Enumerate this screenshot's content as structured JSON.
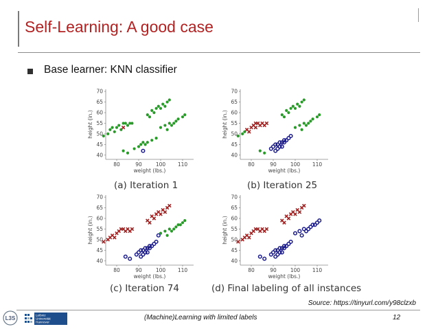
{
  "slide": {
    "title": "Self-Learning: A good case",
    "bullet": "Base learner: KNN classifier",
    "source": "Source: https://tinyurl.com/y98clzxb",
    "footer": "(Machine)Learning with limited labels",
    "page_number": "12"
  },
  "logos": {
    "l3s_text": "L3S",
    "luh_lines": [
      "Leibniz",
      "Universität",
      "Hannover"
    ]
  },
  "colors": {
    "red": "#a02020",
    "green": "#2a9a2a",
    "blue": "#1a1a8a",
    "title": "#b22222"
  },
  "chart_data": [
    {
      "type": "scatter",
      "caption": "(a) Iteration 1",
      "xlabel": "weight (lbs.)",
      "ylabel": "height (in.)",
      "xticks": [
        "80",
        "90",
        "100",
        "110"
      ],
      "yticks": [
        "40",
        "45",
        "50",
        "55",
        "60",
        "65",
        "70"
      ],
      "xlim": [
        75,
        115
      ],
      "ylim": [
        38,
        71
      ],
      "series": [
        {
          "marker": "dot",
          "color": "green",
          "points": [
            [
              74,
              49
            ],
            [
              76,
              50
            ],
            [
              77,
              52
            ],
            [
              78,
              53
            ],
            [
              80,
              53
            ],
            [
              81,
              54
            ],
            [
              83,
              55
            ],
            [
              84,
              55
            ],
            [
              85,
              54
            ],
            [
              86,
              55
            ],
            [
              87,
              55
            ],
            [
              79,
              51
            ],
            [
              82,
              52
            ],
            [
              94,
              59
            ],
            [
              96,
              61
            ],
            [
              97,
              60
            ],
            [
              99,
              63
            ],
            [
              100,
              62
            ],
            [
              101,
              64
            ],
            [
              103,
              65
            ],
            [
              104,
              66
            ],
            [
              102,
              63
            ],
            [
              98,
              62
            ],
            [
              95,
              58
            ],
            [
              100,
              53
            ],
            [
              102,
              54
            ],
            [
              104,
              55
            ],
            [
              106,
              55
            ],
            [
              107,
              56
            ],
            [
              108,
              57
            ],
            [
              110,
              58
            ],
            [
              111,
              59
            ],
            [
              103,
              52
            ],
            [
              105,
              54
            ],
            [
              83,
              42
            ],
            [
              85,
              41
            ],
            [
              88,
              43
            ],
            [
              90,
              44
            ],
            [
              91,
              45
            ],
            [
              92,
              46
            ],
            [
              94,
              46
            ],
            [
              96,
              47
            ],
            [
              98,
              48
            ],
            [
              93,
              45
            ]
          ]
        },
        {
          "marker": "x",
          "color": "red",
          "points": [
            [
              83,
              53
            ]
          ]
        },
        {
          "marker": "circle",
          "color": "blue",
          "points": [
            [
              92,
              42
            ]
          ]
        }
      ]
    },
    {
      "type": "scatter",
      "caption": "(b) Iteration 25",
      "xlabel": "weight (lbs.)",
      "ylabel": "height (in.)",
      "xticks": [
        "80",
        "90",
        "100",
        "110"
      ],
      "yticks": [
        "40",
        "45",
        "50",
        "55",
        "60",
        "65",
        "70"
      ],
      "xlim": [
        75,
        115
      ],
      "ylim": [
        38,
        71
      ],
      "series": [
        {
          "marker": "dot",
          "color": "green",
          "points": [
            [
              74,
              49
            ],
            [
              76,
              50
            ],
            [
              77,
              51
            ],
            [
              94,
              59
            ],
            [
              96,
              61
            ],
            [
              97,
              60
            ],
            [
              99,
              63
            ],
            [
              100,
              62
            ],
            [
              101,
              64
            ],
            [
              103,
              65
            ],
            [
              104,
              66
            ],
            [
              102,
              63
            ],
            [
              98,
              62
            ],
            [
              95,
              58
            ],
            [
              100,
              53
            ],
            [
              102,
              54
            ],
            [
              104,
              55
            ],
            [
              106,
              55
            ],
            [
              107,
              56
            ],
            [
              108,
              57
            ],
            [
              110,
              58
            ],
            [
              111,
              59
            ],
            [
              103,
              52
            ],
            [
              105,
              54
            ],
            [
              84,
              42
            ],
            [
              86,
              41
            ]
          ]
        },
        {
          "marker": "x",
          "color": "red",
          "points": [
            [
              78,
              52
            ],
            [
              80,
              53
            ],
            [
              81,
              54
            ],
            [
              82,
              55
            ],
            [
              83,
              55
            ],
            [
              84,
              54
            ],
            [
              85,
              55
            ],
            [
              86,
              54
            ],
            [
              87,
              55
            ],
            [
              79,
              51
            ],
            [
              82,
              53
            ]
          ]
        },
        {
          "marker": "circle",
          "color": "blue",
          "points": [
            [
              89,
              43
            ],
            [
              90,
              44
            ],
            [
              91,
              45
            ],
            [
              92,
              45
            ],
            [
              93,
              46
            ],
            [
              94,
              46
            ],
            [
              95,
              47
            ],
            [
              96,
              47
            ],
            [
              97,
              48
            ],
            [
              98,
              49
            ],
            [
              91,
              42
            ],
            [
              92,
              43
            ],
            [
              94,
              44
            ],
            [
              93,
              44
            ],
            [
              95,
              46
            ]
          ]
        }
      ]
    },
    {
      "type": "scatter",
      "caption": "(c) Iteration 74",
      "xlabel": "weight (lbs.)",
      "ylabel": "height (in.)",
      "xticks": [
        "80",
        "90",
        "100",
        "110"
      ],
      "yticks": [
        "40",
        "45",
        "50",
        "55",
        "60",
        "65",
        "70"
      ],
      "xlim": [
        75,
        115
      ],
      "ylim": [
        38,
        71
      ],
      "series": [
        {
          "marker": "dot",
          "color": "green",
          "points": [
            [
              100,
              53
            ],
            [
              102,
              54
            ],
            [
              104,
              55
            ],
            [
              106,
              55
            ],
            [
              107,
              56
            ],
            [
              108,
              57
            ],
            [
              110,
              58
            ],
            [
              111,
              59
            ],
            [
              103,
              52
            ],
            [
              105,
              54
            ],
            [
              109,
              57
            ]
          ]
        },
        {
          "marker": "x",
          "color": "red",
          "points": [
            [
              74,
              49
            ],
            [
              76,
              50
            ],
            [
              77,
              51
            ],
            [
              78,
              52
            ],
            [
              80,
              53
            ],
            [
              81,
              54
            ],
            [
              82,
              55
            ],
            [
              83,
              55
            ],
            [
              84,
              54
            ],
            [
              85,
              55
            ],
            [
              86,
              54
            ],
            [
              87,
              55
            ],
            [
              79,
              51
            ],
            [
              94,
              59
            ],
            [
              96,
              61
            ],
            [
              97,
              60
            ],
            [
              99,
              63
            ],
            [
              100,
              62
            ],
            [
              101,
              64
            ],
            [
              103,
              65
            ],
            [
              104,
              66
            ],
            [
              102,
              63
            ],
            [
              98,
              62
            ],
            [
              95,
              58
            ]
          ]
        },
        {
          "marker": "circle",
          "color": "blue",
          "points": [
            [
              84,
              42
            ],
            [
              86,
              41
            ],
            [
              89,
              43
            ],
            [
              90,
              44
            ],
            [
              91,
              45
            ],
            [
              92,
              45
            ],
            [
              93,
              46
            ],
            [
              94,
              46
            ],
            [
              95,
              47
            ],
            [
              96,
              47
            ],
            [
              97,
              48
            ],
            [
              98,
              49
            ],
            [
              91,
              42
            ],
            [
              92,
              43
            ],
            [
              94,
              44
            ],
            [
              93,
              44
            ],
            [
              95,
              46
            ],
            [
              99,
              52
            ]
          ]
        }
      ]
    },
    {
      "type": "scatter",
      "caption": "(d) Final labeling of all instances",
      "xlabel": "weight (lbs.)",
      "ylabel": "height (in.)",
      "xticks": [
        "80",
        "90",
        "100",
        "110"
      ],
      "yticks": [
        "40",
        "45",
        "50",
        "55",
        "60",
        "65",
        "70"
      ],
      "xlim": [
        75,
        115
      ],
      "ylim": [
        38,
        71
      ],
      "series": [
        {
          "marker": "x",
          "color": "red",
          "points": [
            [
              74,
              49
            ],
            [
              76,
              50
            ],
            [
              77,
              51
            ],
            [
              78,
              52
            ],
            [
              80,
              53
            ],
            [
              81,
              54
            ],
            [
              82,
              55
            ],
            [
              83,
              55
            ],
            [
              84,
              54
            ],
            [
              85,
              55
            ],
            [
              86,
              54
            ],
            [
              87,
              55
            ],
            [
              79,
              51
            ],
            [
              94,
              59
            ],
            [
              96,
              61
            ],
            [
              97,
              60
            ],
            [
              99,
              63
            ],
            [
              100,
              62
            ],
            [
              101,
              64
            ],
            [
              103,
              65
            ],
            [
              104,
              66
            ],
            [
              102,
              63
            ],
            [
              98,
              62
            ],
            [
              95,
              58
            ]
          ]
        },
        {
          "marker": "circle",
          "color": "blue",
          "points": [
            [
              84,
              42
            ],
            [
              86,
              41
            ],
            [
              89,
              43
            ],
            [
              90,
              44
            ],
            [
              91,
              45
            ],
            [
              92,
              45
            ],
            [
              93,
              46
            ],
            [
              94,
              46
            ],
            [
              95,
              47
            ],
            [
              96,
              47
            ],
            [
              97,
              48
            ],
            [
              98,
              49
            ],
            [
              91,
              42
            ],
            [
              92,
              43
            ],
            [
              94,
              44
            ],
            [
              93,
              44
            ],
            [
              95,
              46
            ],
            [
              100,
              53
            ],
            [
              102,
              54
            ],
            [
              104,
              55
            ],
            [
              106,
              55
            ],
            [
              107,
              56
            ],
            [
              108,
              57
            ],
            [
              110,
              58
            ],
            [
              111,
              59
            ],
            [
              103,
              52
            ],
            [
              105,
              54
            ],
            [
              109,
              57
            ]
          ]
        }
      ]
    }
  ]
}
